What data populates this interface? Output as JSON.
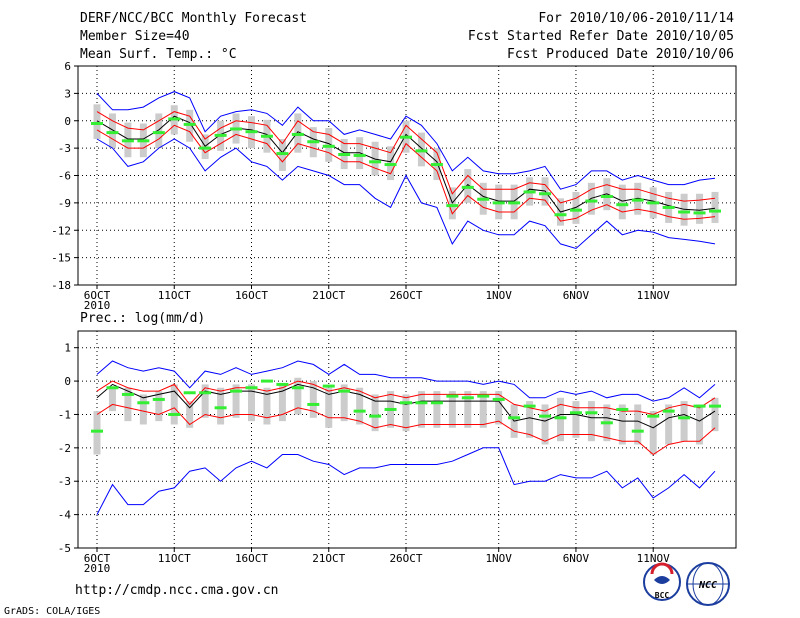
{
  "header": {
    "title": "DERF/NCC/BCC Monthly Forecast",
    "member_size": "Member Size=40",
    "period": "For 2010/10/06-2010/11/14",
    "fcst_started": "Fcst Started Refer Date 2010/10/05",
    "fcst_produced": "Fcst Produced Date 2010/10/06"
  },
  "footer": {
    "url": "http://cmdp.ncc.cma.gov.cn",
    "credit": "GrADS: COLA/IGES",
    "logo_left_text": "BCC",
    "logo_right_text": "NCC"
  },
  "colors": {
    "ensemble_mean": "#000000",
    "spread_band": "#ff0000",
    "extremes": "#0000ff",
    "box": "#cccccc",
    "median": "#33ee33",
    "grid": "#000000"
  },
  "chart_data": [
    {
      "type": "line",
      "title": "Mean Surf. Temp.: °C",
      "subtitle_lines": [
        "Member Size=40",
        "Mean Surf. Temp.: °C"
      ],
      "xlabel": "",
      "ylabel": "°C",
      "ylim": [
        -18,
        6
      ],
      "yticks": [
        "6",
        "3",
        "0",
        "-3",
        "-6",
        "-9",
        "-12",
        "-15",
        "-18"
      ],
      "xticks": [
        {
          "day": 0,
          "label": "6OCT"
        },
        {
          "day": 5,
          "label": "11OCT"
        },
        {
          "day": 10,
          "label": "16OCT"
        },
        {
          "day": 15,
          "label": "21OCT"
        },
        {
          "day": 20,
          "label": "26OCT"
        },
        {
          "day": 26,
          "label": "1NOV"
        },
        {
          "day": 31,
          "label": "6NOV"
        },
        {
          "day": 36,
          "label": "11NOV"
        }
      ],
      "year_label": "2010",
      "grid": true,
      "series": [
        {
          "name": "max",
          "color": "#0000ff",
          "values": [
            3,
            1.2,
            1.2,
            1.5,
            2.5,
            3.2,
            2.5,
            -1.2,
            0.5,
            1,
            1.2,
            0.8,
            -0.5,
            1.5,
            0,
            0,
            -1.5,
            -1,
            -1.5,
            -2,
            0.5,
            -0.5,
            -2.5,
            -5.5,
            -4,
            -5.5,
            -5.8,
            -5.8,
            -5.5,
            -5,
            -7.5,
            -7,
            -5.5,
            -5.5,
            -6.5,
            -6,
            -6.5,
            -7,
            -7,
            -6.5,
            -6.3
          ]
        },
        {
          "name": "upper",
          "color": "#ff0000",
          "values": [
            1,
            0,
            -0.8,
            -1,
            0,
            1,
            0.5,
            -2,
            -0.8,
            0,
            -0.2,
            -0.5,
            -2.5,
            0,
            -1.2,
            -1.5,
            -2.5,
            -2.5,
            -3,
            -3.5,
            -0.5,
            -2,
            -3.5,
            -8,
            -6,
            -7.5,
            -7.5,
            -7.5,
            -6.8,
            -7,
            -9,
            -8.5,
            -7.5,
            -7,
            -7.5,
            -7.5,
            -8,
            -8.5,
            -8.8,
            -8.7,
            -8.5
          ]
        },
        {
          "name": "mean",
          "color": "#000000",
          "values": [
            0,
            -1,
            -2,
            -2,
            -1,
            0.5,
            -0.2,
            -2.8,
            -1.5,
            -0.8,
            -1,
            -1.5,
            -3.5,
            -1.2,
            -2,
            -2.5,
            -3.5,
            -3.5,
            -4.2,
            -4.5,
            -1.5,
            -3,
            -4.5,
            -9,
            -7,
            -8.3,
            -8.8,
            -8.8,
            -7.5,
            -7.7,
            -10,
            -9.5,
            -8.5,
            -8,
            -8.8,
            -8.5,
            -8.8,
            -9.3,
            -9.7,
            -9.8,
            -9.6
          ]
        },
        {
          "name": "lower",
          "color": "#ff0000",
          "values": [
            -1,
            -2,
            -3,
            -3,
            -2,
            -0.5,
            -1.2,
            -3.5,
            -2.5,
            -1.5,
            -2,
            -2.5,
            -4.5,
            -2.5,
            -3,
            -3.5,
            -4.5,
            -4.5,
            -5.2,
            -5.8,
            -2.5,
            -4,
            -5.5,
            -10.2,
            -8.2,
            -9.5,
            -10,
            -10,
            -8.5,
            -8.7,
            -11,
            -10.7,
            -9.8,
            -9.2,
            -10,
            -9.7,
            -10,
            -10.5,
            -10.8,
            -10.7,
            -10.5
          ]
        },
        {
          "name": "min",
          "color": "#0000ff",
          "values": [
            -2,
            -3,
            -5,
            -4.5,
            -3,
            -2,
            -3,
            -5.5,
            -4,
            -3,
            -4.5,
            -5,
            -6.5,
            -5,
            -5.5,
            -6,
            -7,
            -7,
            -8.5,
            -9.5,
            -6,
            -9,
            -9.5,
            -13.5,
            -11,
            -12,
            -12.5,
            -12.5,
            -11,
            -11.5,
            -13.5,
            -14,
            -12.5,
            -11,
            -12.5,
            -12,
            -12.2,
            -12.8,
            -13,
            -13.2,
            -13.5
          ]
        },
        {
          "name": "box_high",
          "color": "#cccccc",
          "values": [
            1.8,
            0.8,
            -0.2,
            -0.3,
            0.8,
            1.7,
            1.2,
            -1.5,
            0,
            0.8,
            0.5,
            0.1,
            -2,
            0.8,
            -0.7,
            -0.8,
            -2,
            -1.8,
            -2.3,
            -2.8,
            0,
            -1.3,
            -3,
            -7.3,
            -5.3,
            -6.8,
            -7,
            -7,
            -6.2,
            -6.2,
            -8.5,
            -7.8,
            -6.8,
            -6.3,
            -7,
            -6.8,
            -7.3,
            -7.8,
            -8,
            -8,
            -7.8
          ]
        },
        {
          "name": "box_low",
          "color": "#cccccc",
          "values": [
            -2,
            -3,
            -4,
            -4,
            -3,
            -1.5,
            -2.3,
            -4.2,
            -3.3,
            -2.5,
            -3,
            -3.5,
            -5.5,
            -3.5,
            -4,
            -4.5,
            -5.3,
            -5.3,
            -6,
            -6.5,
            -3.5,
            -5,
            -6.5,
            -10.8,
            -9,
            -10.3,
            -10.8,
            -10.8,
            -9.3,
            -9.3,
            -11.5,
            -11.3,
            -10.3,
            -9.8,
            -10.8,
            -10.3,
            -10.7,
            -11.2,
            -11.5,
            -11.3,
            -11.2
          ]
        },
        {
          "name": "median",
          "color": "#33ee33",
          "values": [
            -0.3,
            -1.3,
            -2.2,
            -2.2,
            -1.3,
            0.2,
            -0.4,
            -3,
            -1.6,
            -0.9,
            -1.2,
            -1.7,
            -3.6,
            -1.5,
            -2.3,
            -2.8,
            -3.7,
            -3.8,
            -4.5,
            -4.8,
            -1.8,
            -3.3,
            -4.8,
            -9.3,
            -7.3,
            -8.6,
            -9,
            -9,
            -7.8,
            -8,
            -10.3,
            -9.8,
            -8.8,
            -8.3,
            -9.2,
            -8.7,
            -9,
            -9.5,
            -10,
            -10.1,
            -9.9
          ]
        }
      ]
    },
    {
      "type": "line",
      "title": "Prec.: log(mm/d)",
      "xlabel": "",
      "ylabel": "log(mm/d)",
      "ylim": [
        -5,
        1.5
      ],
      "yticks": [
        "1",
        "0",
        "-1",
        "-2",
        "-3",
        "-4",
        "-5"
      ],
      "xticks": [
        {
          "day": 0,
          "label": "6OCT"
        },
        {
          "day": 5,
          "label": "11OCT"
        },
        {
          "day": 10,
          "label": "16OCT"
        },
        {
          "day": 15,
          "label": "21OCT"
        },
        {
          "day": 20,
          "label": "26OCT"
        },
        {
          "day": 26,
          "label": "1NOV"
        },
        {
          "day": 31,
          "label": "6NOV"
        },
        {
          "day": 36,
          "label": "11NOV"
        }
      ],
      "year_label": "2010",
      "grid": true,
      "series": [
        {
          "name": "max",
          "color": "#0000ff",
          "values": [
            0.2,
            0.6,
            0.4,
            0.3,
            0.4,
            0.3,
            -0.2,
            0.3,
            0.2,
            0.4,
            0.2,
            0.3,
            0.4,
            0.6,
            0.5,
            0.2,
            0.5,
            0.2,
            0.2,
            0.1,
            0.1,
            0.1,
            0,
            0,
            0,
            -0.1,
            0,
            -0.1,
            -0.5,
            -0.5,
            -0.3,
            -0.4,
            -0.3,
            -0.5,
            -0.4,
            -0.4,
            -0.6,
            -0.5,
            -0.2,
            -0.5,
            -0.1
          ]
        },
        {
          "name": "upper",
          "color": "#ff0000",
          "values": [
            -0.3,
            0,
            -0.2,
            -0.3,
            -0.3,
            -0.1,
            -0.7,
            -0.2,
            -0.3,
            -0.2,
            -0.2,
            -0.3,
            -0.2,
            0,
            -0.1,
            -0.3,
            -0.2,
            -0.3,
            -0.5,
            -0.4,
            -0.5,
            -0.4,
            -0.4,
            -0.4,
            -0.4,
            -0.4,
            -0.4,
            -0.7,
            -0.8,
            -0.9,
            -0.7,
            -0.8,
            -0.8,
            -0.8,
            -0.9,
            -0.9,
            -1,
            -0.8,
            -0.7,
            -0.8,
            -0.5
          ]
        },
        {
          "name": "mean",
          "color": "#000000",
          "values": [
            -0.5,
            -0.1,
            -0.3,
            -0.5,
            -0.4,
            -0.3,
            -0.8,
            -0.3,
            -0.4,
            -0.3,
            -0.3,
            -0.4,
            -0.3,
            -0.1,
            -0.2,
            -0.4,
            -0.3,
            -0.4,
            -0.6,
            -0.6,
            -0.7,
            -0.6,
            -0.6,
            -0.6,
            -0.6,
            -0.6,
            -0.6,
            -1.2,
            -1.1,
            -1.2,
            -1,
            -1,
            -1.1,
            -1.1,
            -1.2,
            -1.2,
            -1.4,
            -1.1,
            -1,
            -1.2,
            -0.9
          ]
        },
        {
          "name": "lower",
          "color": "#ff0000",
          "values": [
            -1,
            -0.7,
            -0.8,
            -0.9,
            -1,
            -0.8,
            -1.3,
            -1,
            -1.1,
            -1,
            -1,
            -1.1,
            -1,
            -0.8,
            -0.9,
            -1.1,
            -1.1,
            -1.2,
            -1.4,
            -1.3,
            -1.4,
            -1.3,
            -1.3,
            -1.3,
            -1.3,
            -1.3,
            -1.2,
            -1.5,
            -1.6,
            -1.8,
            -1.6,
            -1.6,
            -1.6,
            -1.7,
            -1.8,
            -1.8,
            -2.2,
            -1.9,
            -1.8,
            -1.8,
            -1.4
          ]
        },
        {
          "name": "min",
          "color": "#0000ff",
          "values": [
            -4,
            -3.1,
            -3.7,
            -3.7,
            -3.3,
            -3.2,
            -2.7,
            -2.6,
            -3,
            -2.6,
            -2.4,
            -2.6,
            -2.2,
            -2.2,
            -2.4,
            -2.5,
            -2.8,
            -2.6,
            -2.6,
            -2.5,
            -2.5,
            -2.5,
            -2.5,
            -2.4,
            -2.2,
            -2,
            -2,
            -3.1,
            -3,
            -3,
            -2.8,
            -2.9,
            -2.9,
            -2.7,
            -3.2,
            -2.9,
            -3.5,
            -3.2,
            -2.8,
            -3.2,
            -2.7
          ]
        },
        {
          "name": "box_high",
          "color": "#cccccc",
          "values": [
            -0.9,
            -0.2,
            -0.2,
            -0.4,
            -0.3,
            -0.1,
            -0.6,
            -0.1,
            -0.2,
            -0.1,
            -0.1,
            -0.2,
            -0.1,
            0.1,
            0,
            -0.2,
            -0.1,
            -0.2,
            -0.4,
            -0.3,
            -0.4,
            -0.3,
            -0.3,
            -0.3,
            -0.3,
            -0.3,
            -0.3,
            -0.7,
            -0.6,
            -0.7,
            -0.5,
            -0.6,
            -0.6,
            -0.7,
            -0.7,
            -0.7,
            -0.9,
            -0.7,
            -0.6,
            -0.7,
            -0.5
          ]
        },
        {
          "name": "box_low",
          "color": "#cccccc",
          "values": [
            -2.2,
            -0.9,
            -1.2,
            -1.3,
            -1.2,
            -1.3,
            -1.4,
            -1.1,
            -1.3,
            -1.1,
            -1.2,
            -1.3,
            -1.2,
            -1,
            -1.1,
            -1.4,
            -1.2,
            -1.3,
            -1.5,
            -1.4,
            -1.5,
            -1.4,
            -1.4,
            -1.4,
            -1.4,
            -1.4,
            -1.3,
            -1.7,
            -1.7,
            -1.9,
            -1.8,
            -1.7,
            -1.8,
            -1.8,
            -1.9,
            -1.9,
            -2.2,
            -1.9,
            -1.8,
            -1.9,
            -1.5
          ]
        },
        {
          "name": "median",
          "color": "#33ee33",
          "values": [
            -1.5,
            -0.2,
            -0.4,
            -0.65,
            -0.55,
            -1,
            -0.35,
            -0.35,
            -0.8,
            -0.3,
            -0.2,
            0,
            -0.1,
            -0.2,
            -0.7,
            -0.15,
            -0.3,
            -0.9,
            -1.05,
            -0.85,
            -0.65,
            -0.65,
            -0.65,
            -0.45,
            -0.5,
            -0.45,
            -0.55,
            -1.1,
            -0.75,
            -1.05,
            -1.1,
            -0.95,
            -0.95,
            -1.25,
            -0.85,
            -1.5,
            -1.05,
            -0.9,
            -1.1,
            -0.75,
            -0.75
          ]
        }
      ]
    }
  ]
}
